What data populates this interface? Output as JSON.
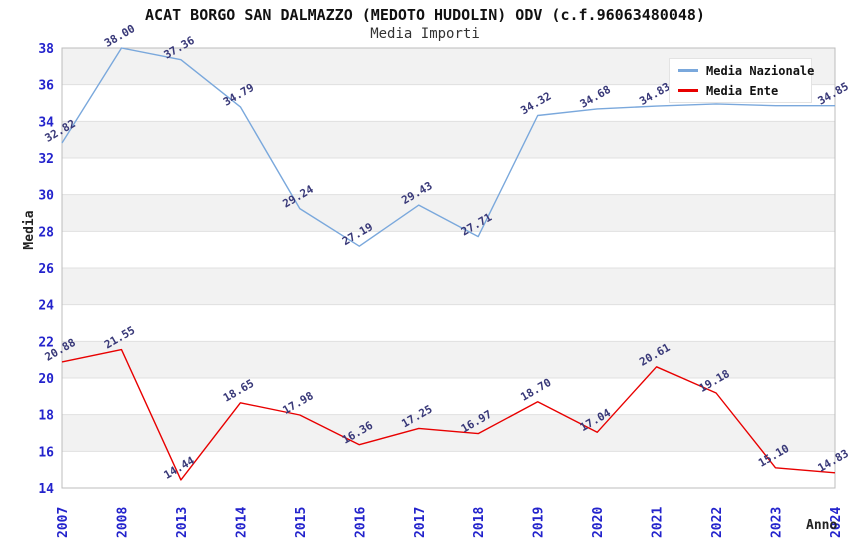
{
  "title": "ACAT BORGO SAN DALMAZZO (MEDOTO HUDOLIN) ODV (c.f.96063480048)",
  "subtitle": "Media Importi",
  "legend": {
    "items": [
      {
        "label": "Media Nazionale",
        "color": "#7aa8dc"
      },
      {
        "label": "Media Ente",
        "color": "#e80000"
      }
    ]
  },
  "colors": {
    "national_line": "#7aa8dc",
    "ente_line": "#e80000",
    "tick_text": "#2323cc",
    "data_label_text": "#383878",
    "band_gray": "#f2f2f2",
    "gridline": "#e0e0e0",
    "plot_border": "#bcbcbc"
  },
  "chart_data": {
    "type": "line",
    "title": "ACAT BORGO SAN DALMAZZO (MEDOTO HUDOLIN) ODV (c.f.96063480048)",
    "subtitle": "Media Importi",
    "xlabel": "Anno",
    "ylabel": "Media",
    "ylim": [
      14,
      38
    ],
    "ytick_step": 2,
    "grid": "horizontal-bands",
    "legend_position": "top-right",
    "x": [
      "2007",
      "2008",
      "2013",
      "2014",
      "2015",
      "2016",
      "2017",
      "2018",
      "2019",
      "2020",
      "2021",
      "2022",
      "2023",
      "2024"
    ],
    "series": [
      {
        "name": "Media Nazionale",
        "color": "#7aa8dc",
        "values": [
          32.82,
          38.0,
          37.36,
          34.79,
          29.24,
          27.19,
          29.43,
          27.71,
          34.32,
          34.68,
          34.83,
          34.95,
          34.85,
          34.85
        ],
        "labels": [
          "32.82",
          "38.00",
          "37.36",
          "34.79",
          "29.24",
          "27.19",
          "29.43",
          "27.71",
          "34.32",
          "34.68",
          "34.83",
          null,
          null,
          "34.85"
        ]
      },
      {
        "name": "Media Ente",
        "color": "#e80000",
        "values": [
          20.88,
          21.55,
          14.44,
          18.65,
          17.98,
          16.36,
          17.25,
          16.97,
          18.7,
          17.04,
          20.61,
          19.18,
          15.1,
          14.83
        ],
        "labels": [
          "20.88",
          "21.55",
          "14.44",
          "18.65",
          "17.98",
          "16.36",
          "17.25",
          "16.97",
          "18.70",
          "17.04",
          "20.61",
          "19.18",
          "15.10",
          "14.83"
        ]
      }
    ]
  }
}
